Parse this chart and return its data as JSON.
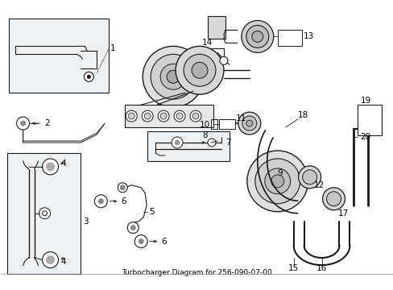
{
  "title": "Turbocharger Diagram for 256-090-07-00",
  "background_color": "#ffffff",
  "figsize": [
    4.89,
    3.6
  ],
  "dpi": 100,
  "line_color": "#1a1a1a",
  "text_color": "#000000",
  "label_fontsize": 7.5,
  "part_number": "256-090-07-00"
}
